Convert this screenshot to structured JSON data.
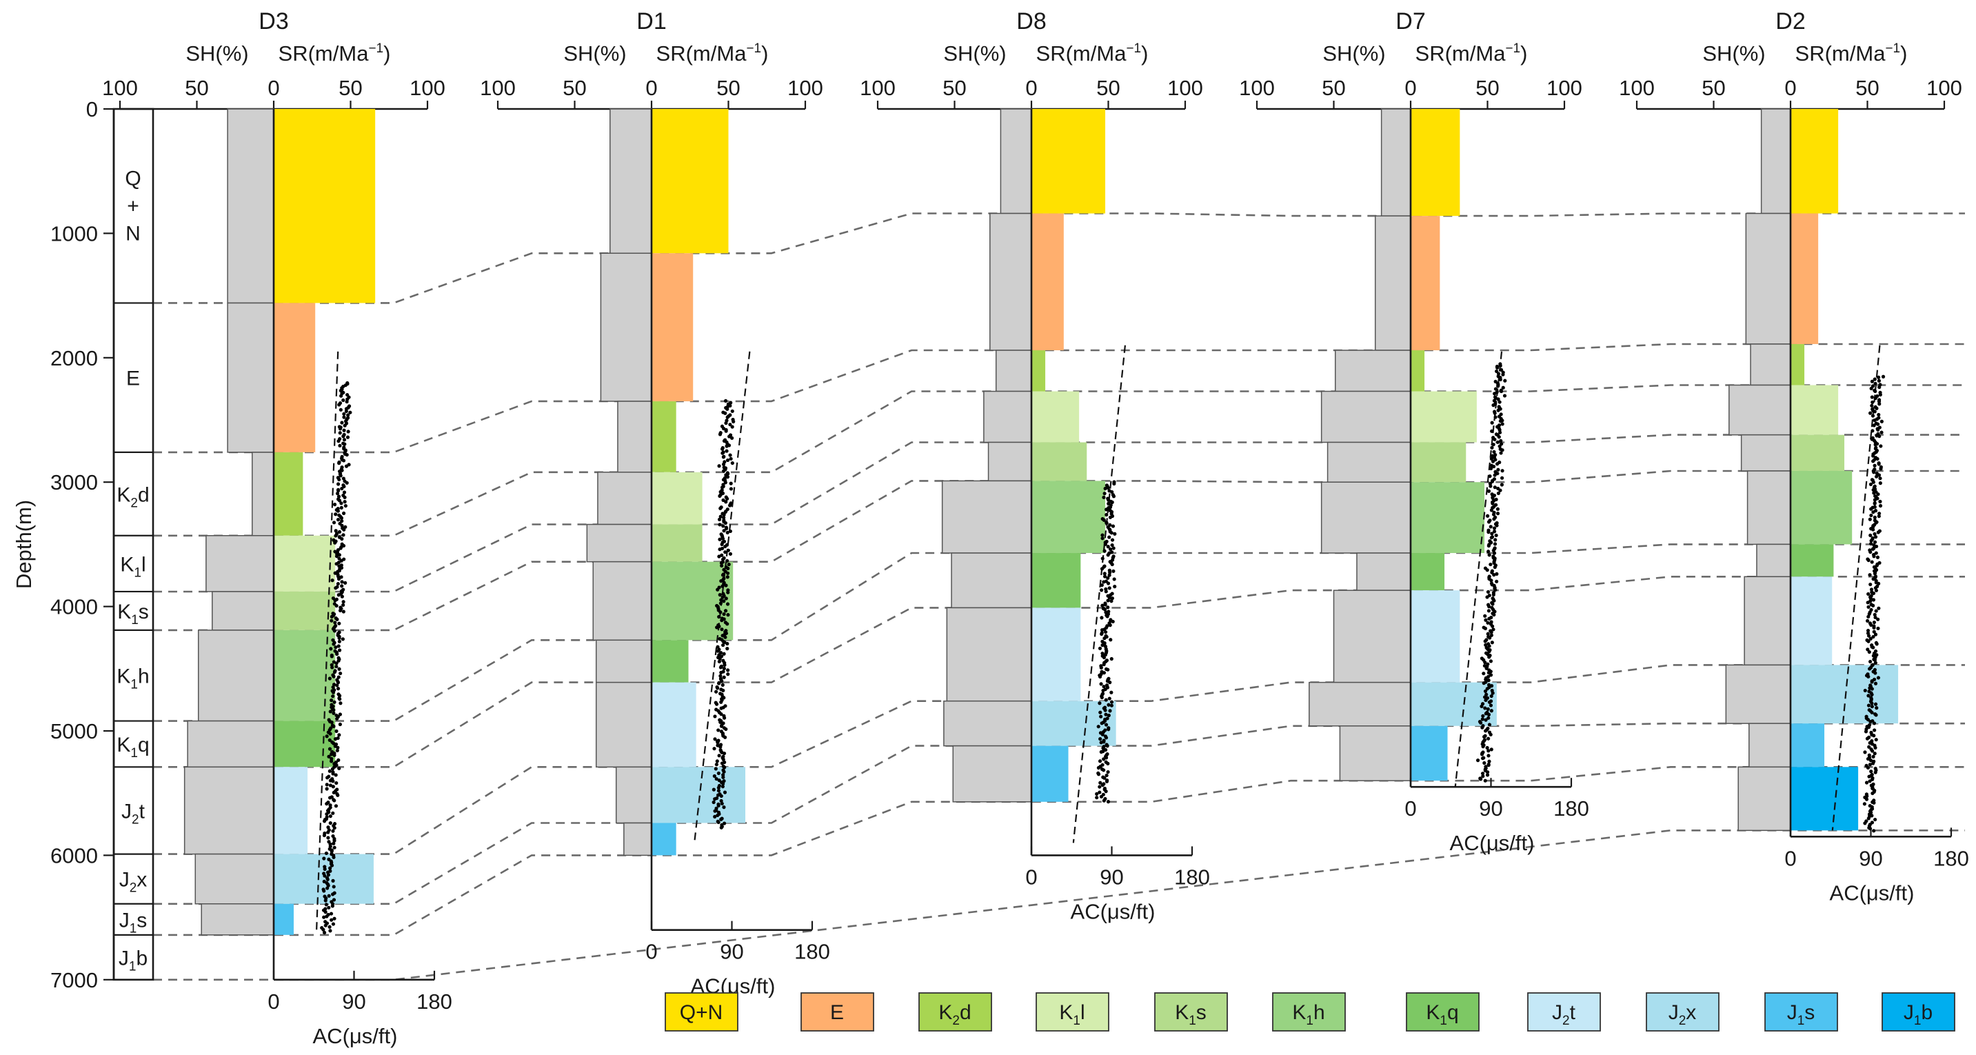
{
  "chart_data": {
    "type": "bar",
    "title": "",
    "ylabel": "Depth(m)",
    "ylim": [
      0,
      7000
    ],
    "yticks": [
      "0",
      "1000",
      "2000",
      "3000",
      "4000",
      "5000",
      "6000",
      "7000"
    ],
    "top_axis": {
      "sh_label": "SH(%)",
      "sr_label": "SR(m/Ma",
      "sr_sup": "−1",
      "sr_close": ")",
      "sh_ticks": [
        "100",
        "50",
        "0"
      ],
      "sr_ticks": [
        "50",
        "100"
      ],
      "sh_range": [
        100,
        0
      ],
      "sr_range": [
        0,
        100
      ]
    },
    "bottom_axis": {
      "label": "AC(μs/ft)",
      "ticks": [
        "0",
        "90",
        "180"
      ],
      "range": [
        0,
        180
      ]
    },
    "units": [
      {
        "key": "QN",
        "name": "Q+N",
        "color": "#FFE100"
      },
      {
        "key": "E",
        "name": "E",
        "color": "#FFAF6E"
      },
      {
        "key": "K2d",
        "name": "K2d",
        "main": "K",
        "sub": "2",
        "rest": "d",
        "color": "#A8D552"
      },
      {
        "key": "K1l",
        "name": "K1l",
        "main": "K",
        "sub": "1",
        "rest": "l",
        "color": "#D4EDAE"
      },
      {
        "key": "K1s",
        "name": "K1s",
        "main": "K",
        "sub": "1",
        "rest": "s",
        "color": "#B4DC8C"
      },
      {
        "key": "K1h",
        "name": "K1h",
        "main": "K",
        "sub": "1",
        "rest": "h",
        "color": "#98D382"
      },
      {
        "key": "K1q",
        "name": "K1q",
        "main": "K",
        "sub": "1",
        "rest": "q",
        "color": "#7DC864"
      },
      {
        "key": "J2t",
        "name": "J2t",
        "main": "J",
        "sub": "2",
        "rest": "t",
        "color": "#C5E8F7"
      },
      {
        "key": "J2x",
        "name": "J2x",
        "main": "J",
        "sub": "2",
        "rest": "x",
        "color": "#A9DEEE"
      },
      {
        "key": "J1s",
        "name": "J1s",
        "main": "J",
        "sub": "1",
        "rest": "s",
        "color": "#4FC3F1"
      },
      {
        "key": "J1b",
        "name": "J1b",
        "main": "J",
        "sub": "1",
        "rest": "b",
        "color": "#00AEEF"
      }
    ],
    "strat_column": [
      {
        "label": "Q+N",
        "top": 0,
        "bottom": 1560
      },
      {
        "label": "E",
        "top": 1560,
        "bottom": 2760
      },
      {
        "label": "K2d",
        "top": 2760,
        "bottom": 3430
      },
      {
        "label": "K1l",
        "top": 3430,
        "bottom": 3880
      },
      {
        "label": "K1s",
        "top": 3880,
        "bottom": 4190
      },
      {
        "label": "K1h",
        "top": 4190,
        "bottom": 4920
      },
      {
        "label": "K1q",
        "top": 4920,
        "bottom": 5290
      },
      {
        "label": "J2t",
        "top": 5290,
        "bottom": 5990
      },
      {
        "label": "J2x",
        "top": 5990,
        "bottom": 6390
      },
      {
        "label": "J1s",
        "top": 6390,
        "bottom": 6640
      },
      {
        "label": "J1b",
        "top": 6640,
        "bottom": 7000
      }
    ],
    "wells": [
      {
        "name": "D3",
        "depth_range": [
          0,
          7000
        ],
        "ac_trend": {
          "top": [
            72,
            1950
          ],
          "bottom": [
            48,
            6600
          ]
        },
        "ac_points": {
          "top": 2200,
          "bottom": 6620,
          "start": 80,
          "end": 60
        },
        "layers": [
          {
            "unit": "QN",
            "top": 0,
            "bottom": 1560,
            "sh": 30,
            "sr": 66
          },
          {
            "unit": "E",
            "top": 1560,
            "bottom": 2760,
            "sh": 30,
            "sr": 27
          },
          {
            "unit": "K2d",
            "top": 2760,
            "bottom": 3430,
            "sh": 14,
            "sr": 19
          },
          {
            "unit": "K1l",
            "top": 3430,
            "bottom": 3880,
            "sh": 44,
            "sr": 40
          },
          {
            "unit": "K1s",
            "top": 3880,
            "bottom": 4190,
            "sh": 40,
            "sr": 40
          },
          {
            "unit": "K1h",
            "top": 4190,
            "bottom": 4920,
            "sh": 49,
            "sr": 40
          },
          {
            "unit": "K1q",
            "top": 4920,
            "bottom": 5290,
            "sh": 56,
            "sr": 40
          },
          {
            "unit": "J2t",
            "top": 5290,
            "bottom": 5990,
            "sh": 58,
            "sr": 22
          },
          {
            "unit": "J2x",
            "top": 5990,
            "bottom": 6390,
            "sh": 51,
            "sr": 65
          },
          {
            "unit": "J1s",
            "top": 6390,
            "bottom": 6640,
            "sh": 47,
            "sr": 13
          }
        ]
      },
      {
        "name": "D1",
        "depth_range": [
          0,
          6600
        ],
        "ac_trend": {
          "top": [
            110,
            1950
          ],
          "bottom": [
            48,
            5900
          ]
        },
        "ac_points": {
          "top": 2350,
          "bottom": 5780,
          "start": 85,
          "end": 75
        },
        "layers": [
          {
            "unit": "QN",
            "top": 0,
            "bottom": 1160,
            "sh": 27,
            "sr": 50
          },
          {
            "unit": "E",
            "top": 1160,
            "bottom": 2350,
            "sh": 33,
            "sr": 27
          },
          {
            "unit": "K2d",
            "top": 2350,
            "bottom": 2920,
            "sh": 22,
            "sr": 16
          },
          {
            "unit": "K1l",
            "top": 2920,
            "bottom": 3340,
            "sh": 35,
            "sr": 33
          },
          {
            "unit": "K1s",
            "top": 3340,
            "bottom": 3640,
            "sh": 42,
            "sr": 33
          },
          {
            "unit": "K1h",
            "top": 3640,
            "bottom": 4270,
            "sh": 38,
            "sr": 53
          },
          {
            "unit": "K1q",
            "top": 4270,
            "bottom": 4610,
            "sh": 36,
            "sr": 24
          },
          {
            "unit": "J2t",
            "top": 4610,
            "bottom": 5290,
            "sh": 36,
            "sr": 29
          },
          {
            "unit": "J2x",
            "top": 5290,
            "bottom": 5740,
            "sh": 23,
            "sr": 61
          },
          {
            "unit": "J1s",
            "top": 5740,
            "bottom": 6000,
            "sh": 18,
            "sr": 16
          }
        ]
      },
      {
        "name": "D8",
        "depth_range": [
          0,
          6000
        ],
        "ac_trend": {
          "top": [
            105,
            1900
          ],
          "bottom": [
            47,
            5900
          ]
        },
        "ac_points": {
          "top": 3000,
          "bottom": 5570,
          "start": 88,
          "end": 80
        },
        "layers": [
          {
            "unit": "QN",
            "top": 0,
            "bottom": 840,
            "sh": 20,
            "sr": 48
          },
          {
            "unit": "E",
            "top": 840,
            "bottom": 1940,
            "sh": 27,
            "sr": 21
          },
          {
            "unit": "K2d",
            "top": 1940,
            "bottom": 2270,
            "sh": 23,
            "sr": 9
          },
          {
            "unit": "K1l",
            "top": 2270,
            "bottom": 2680,
            "sh": 31,
            "sr": 31
          },
          {
            "unit": "K1s",
            "top": 2680,
            "bottom": 2990,
            "sh": 28,
            "sr": 36
          },
          {
            "unit": "K1h",
            "top": 2990,
            "bottom": 3570,
            "sh": 58,
            "sr": 48
          },
          {
            "unit": "K1q",
            "top": 3570,
            "bottom": 4010,
            "sh": 52,
            "sr": 32
          },
          {
            "unit": "J2t",
            "top": 4010,
            "bottom": 4760,
            "sh": 55,
            "sr": 32
          },
          {
            "unit": "J2x",
            "top": 4760,
            "bottom": 5120,
            "sh": 57,
            "sr": 55
          },
          {
            "unit": "J1s",
            "top": 5120,
            "bottom": 5570,
            "sh": 51,
            "sr": 24
          }
        ]
      },
      {
        "name": "D7",
        "depth_range": [
          0,
          5450
        ],
        "ac_trend": {
          "top": [
            102,
            1950
          ],
          "bottom": [
            50,
            5450
          ]
        },
        "ac_points": {
          "top": 2050,
          "bottom": 5400,
          "start": 100,
          "end": 82
        },
        "layers": [
          {
            "unit": "QN",
            "top": 0,
            "bottom": 860,
            "sh": 19,
            "sr": 32
          },
          {
            "unit": "E",
            "top": 860,
            "bottom": 1940,
            "sh": 23,
            "sr": 19
          },
          {
            "unit": "K2d",
            "top": 1940,
            "bottom": 2270,
            "sh": 49,
            "sr": 9
          },
          {
            "unit": "K1l",
            "top": 2270,
            "bottom": 2680,
            "sh": 58,
            "sr": 43
          },
          {
            "unit": "K1s",
            "top": 2680,
            "bottom": 3000,
            "sh": 54,
            "sr": 36
          },
          {
            "unit": "K1h",
            "top": 3000,
            "bottom": 3570,
            "sh": 58,
            "sr": 48
          },
          {
            "unit": "K1q",
            "top": 3570,
            "bottom": 3870,
            "sh": 35,
            "sr": 22
          },
          {
            "unit": "J2t",
            "top": 3870,
            "bottom": 4610,
            "sh": 50,
            "sr": 32
          },
          {
            "unit": "J2x",
            "top": 4610,
            "bottom": 4960,
            "sh": 66,
            "sr": 56
          },
          {
            "unit": "J1s",
            "top": 4960,
            "bottom": 5400,
            "sh": 46,
            "sr": 24
          }
        ]
      },
      {
        "name": "D2",
        "depth_range": [
          0,
          5850
        ],
        "ac_trend": {
          "top": [
            100,
            1900
          ],
          "bottom": [
            47,
            5800
          ]
        },
        "ac_points": {
          "top": 2150,
          "bottom": 5800,
          "start": 97,
          "end": 88
        },
        "layers": [
          {
            "unit": "QN",
            "top": 0,
            "bottom": 840,
            "sh": 19,
            "sr": 31
          },
          {
            "unit": "E",
            "top": 840,
            "bottom": 1890,
            "sh": 29,
            "sr": 18
          },
          {
            "unit": "K2d",
            "top": 1890,
            "bottom": 2220,
            "sh": 26,
            "sr": 9
          },
          {
            "unit": "K1l",
            "top": 2220,
            "bottom": 2620,
            "sh": 40,
            "sr": 31
          },
          {
            "unit": "K1s",
            "top": 2620,
            "bottom": 2910,
            "sh": 32,
            "sr": 35
          },
          {
            "unit": "K1h",
            "top": 2910,
            "bottom": 3500,
            "sh": 28,
            "sr": 40
          },
          {
            "unit": "K1q",
            "top": 3500,
            "bottom": 3760,
            "sh": 22,
            "sr": 28
          },
          {
            "unit": "J2t",
            "top": 3760,
            "bottom": 4470,
            "sh": 30,
            "sr": 27
          },
          {
            "unit": "J2x",
            "top": 4470,
            "bottom": 4940,
            "sh": 42,
            "sr": 70
          },
          {
            "unit": "J1s",
            "top": 4940,
            "bottom": 5290,
            "sh": 27,
            "sr": 22
          },
          {
            "unit": "J1b",
            "top": 5290,
            "bottom": 5800,
            "sh": 34,
            "sr": 44
          }
        ]
      }
    ],
    "correlation_note": "Dashed lines connect formation boundaries between wells"
  }
}
